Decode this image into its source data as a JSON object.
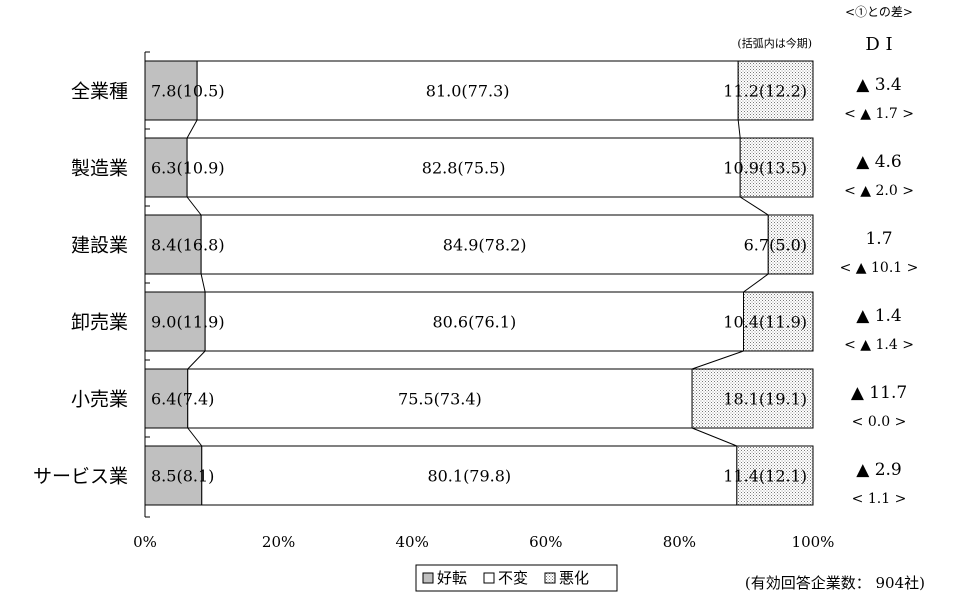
{
  "chart_data": {
    "type": "bar",
    "stacked": true,
    "orientation": "horizontal",
    "categories": [
      "全業種",
      "製造業",
      "建設業",
      "卸売業",
      "小売業",
      "サービス業"
    ],
    "series": [
      {
        "name": "好転",
        "values": [
          7.8,
          6.3,
          8.4,
          9.0,
          6.4,
          8.5
        ],
        "previous": [
          "10.5",
          "10.9",
          "16.8",
          "11.9",
          "7.4",
          "8.1"
        ]
      },
      {
        "name": "不変",
        "values": [
          81.0,
          82.8,
          84.9,
          80.6,
          75.5,
          80.1
        ],
        "previous": [
          "77.3",
          "75.5",
          "78.2",
          "76.1",
          "73.4",
          "79.8"
        ]
      },
      {
        "name": "悪化",
        "values": [
          11.2,
          10.9,
          6.7,
          10.4,
          18.1,
          11.4
        ],
        "previous": [
          "12.2",
          "13.5",
          "5.0",
          "11.9",
          "19.1",
          "12.1"
        ]
      }
    ],
    "value_labels": [
      [
        "7.8",
        "81.0",
        "11.2"
      ],
      [
        "6.3",
        "82.8",
        "10.9"
      ],
      [
        "8.4",
        "84.9",
        "6.7"
      ],
      [
        "9.0",
        "80.6",
        "10.4"
      ],
      [
        "6.4",
        "75.5",
        "18.1"
      ],
      [
        "8.5",
        "80.1",
        "11.4"
      ]
    ],
    "xlim": [
      0,
      100
    ],
    "x_ticks": [
      "0%",
      "20%",
      "40%",
      "60%",
      "80%",
      "100%"
    ],
    "legend_position": "bottom",
    "colors": {
      "好転": "#c0c0c0",
      "不変": "#ffffff",
      "悪化": "#dcdcdc",
      "line": "#000000"
    },
    "note": "(括弧内は今期)",
    "di": {
      "header_top": "<①との差>",
      "header": "D I",
      "values": [
        "▲ 3.4",
        "▲ 4.6",
        "1.7",
        "▲ 1.4",
        "▲ 11.7",
        "▲ 2.9"
      ],
      "diffs": [
        "< ▲ 1.7 >",
        "< ▲ 2.0 >",
        "< ▲ 10.1 >",
        "< ▲ 1.4 >",
        "<   0.0   >",
        "<   1.1   >"
      ]
    },
    "footnote": "(有効回答企業数： 904社)"
  }
}
